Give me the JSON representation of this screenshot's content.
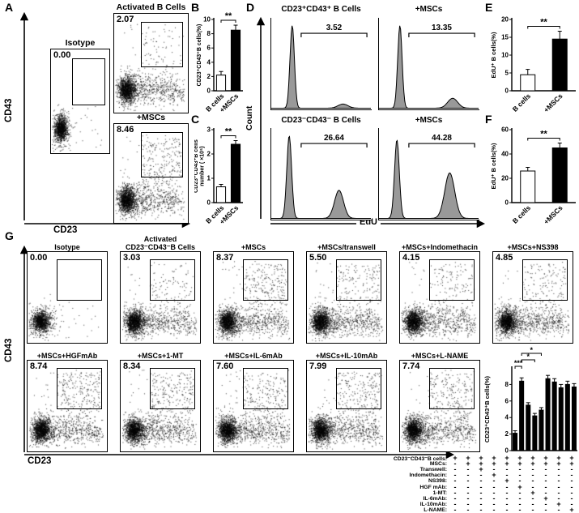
{
  "figure": {
    "bg": "#ffffff"
  },
  "axes": {
    "cd43": "CD43",
    "cd23": "CD23",
    "count": "Count",
    "edu": "EdU"
  },
  "panelA": {
    "label": "A",
    "plots": [
      {
        "name": "isotype",
        "title": [
          "Isotype"
        ],
        "value": "0.00",
        "pct": 0
      },
      {
        "name": "activated-b-cells",
        "title": [
          "Activated B Cells"
        ],
        "value": "2.07",
        "pct": 2.07
      },
      {
        "name": "plus-mscs",
        "title": [
          "+MSCs"
        ],
        "value": "8.46",
        "pct": 8.46
      }
    ]
  },
  "panelB": {
    "label": "B"
  },
  "panelC": {
    "label": "C"
  },
  "panelD": {
    "label": "D"
  },
  "panelE": {
    "label": "E"
  },
  "panelF": {
    "label": "F"
  },
  "panelG": {
    "label": "G",
    "row1": [
      {
        "name": "isotype",
        "title": [
          "Isotype"
        ],
        "value": "0.00",
        "pct": 0
      },
      {
        "name": "activated-cd23neg-cd43neg-b-cells",
        "title": [
          "Activated",
          "CD23⁻CD43⁻B Cells"
        ],
        "value": "3.03",
        "pct": 3.03
      },
      {
        "name": "plus-mscs",
        "title": [
          "+MSCs"
        ],
        "value": "8.37",
        "pct": 8.37
      },
      {
        "name": "plus-mscs-transwell",
        "title": [
          "+MSCs/transwell"
        ],
        "value": "5.50",
        "pct": 5.5
      },
      {
        "name": "plus-mscs-indomethacin",
        "title": [
          "+MSCs+Indomethacin"
        ],
        "value": "4.15",
        "pct": 4.15
      },
      {
        "name": "plus-mscs-ns398",
        "title": [
          "+MSCs+NS398"
        ],
        "value": "4.85",
        "pct": 4.85
      }
    ],
    "row2": [
      {
        "name": "plus-mscs-hgfmab",
        "title": [
          "+MSCs+HGFmAb"
        ],
        "value": "8.74",
        "pct": 8.74
      },
      {
        "name": "plus-mscs-1-mt",
        "title": [
          "+MSCs+1-MT"
        ],
        "value": "8.34",
        "pct": 8.34
      },
      {
        "name": "plus-mscs-il6mab",
        "title": [
          "+MSCs+IL-6mAb"
        ],
        "value": "7.60",
        "pct": 7.6
      },
      {
        "name": "plus-mscs-il10mab",
        "title": [
          "+MSCs+IL-10mAb"
        ],
        "value": "7.99",
        "pct": 7.99
      },
      {
        "name": "plus-mscs-lname",
        "title": [
          "+MSCs+L-NAME"
        ],
        "value": "7.74",
        "pct": 7.74
      }
    ],
    "table": {
      "rows": [
        {
          "label": "CD23⁻CD43⁻B cells:",
          "cells": [
            "+",
            "+",
            "+",
            "+",
            "+",
            "+",
            "+",
            "+",
            "+",
            "+"
          ]
        },
        {
          "label": "MSCs:",
          "cells": [
            "-",
            "+",
            "+",
            "+",
            "+",
            "+",
            "+",
            "+",
            "+",
            "+"
          ]
        },
        {
          "label": "Transwell:",
          "cells": [
            "-",
            "-",
            "+",
            "-",
            "-",
            "-",
            "-",
            "-",
            "-",
            "-"
          ]
        },
        {
          "label": "Indomethacin:",
          "cells": [
            "-",
            "-",
            "-",
            "+",
            "-",
            "-",
            "-",
            "-",
            "-",
            "-"
          ]
        },
        {
          "label": "NS398:",
          "cells": [
            "-",
            "-",
            "-",
            "-",
            "+",
            "-",
            "-",
            "-",
            "-",
            "-"
          ]
        },
        {
          "label": "HGF mAb:",
          "cells": [
            "-",
            "-",
            "-",
            "-",
            "-",
            "+",
            "-",
            "-",
            "-",
            "-"
          ]
        },
        {
          "label": "1-MT:",
          "cells": [
            "-",
            "-",
            "-",
            "-",
            "-",
            "-",
            "+",
            "-",
            "-",
            "-"
          ]
        },
        {
          "label": "IL-6mAb:",
          "cells": [
            "-",
            "-",
            "-",
            "-",
            "-",
            "-",
            "-",
            "+",
            "-",
            "-"
          ]
        },
        {
          "label": "IL-10mAb:",
          "cells": [
            "-",
            "-",
            "-",
            "-",
            "-",
            "-",
            "-",
            "-",
            "+",
            "-"
          ]
        },
        {
          "label": "L-NAME:",
          "cells": [
            "-",
            "-",
            "-",
            "-",
            "-",
            "-",
            "-",
            "-",
            "-",
            "+"
          ]
        }
      ]
    }
  },
  "chart_data": [
    {
      "id": "B",
      "type": "bar",
      "ylabel_lines": [
        "CD23⁺CD43⁺B cells(%)"
      ],
      "categories": [
        "B cells",
        "+MSCs"
      ],
      "values": [
        2.2,
        8.5
      ],
      "errors": [
        0.5,
        0.7
      ],
      "ylim": [
        0,
        10
      ],
      "yticks": [
        0,
        2,
        4,
        6,
        8,
        10
      ],
      "sig": "**",
      "bar_colors": [
        "#ffffff",
        "#000000"
      ]
    },
    {
      "id": "C",
      "type": "bar",
      "ylabel_lines": [
        "CD23⁺CD43⁺B cells",
        "number ( ×10⁵)"
      ],
      "categories": [
        "B cells",
        "+MSCs"
      ],
      "values": [
        0.65,
        2.4
      ],
      "errors": [
        0.1,
        0.15
      ],
      "ylim": [
        0,
        3
      ],
      "yticks": [
        0,
        1,
        2,
        3
      ],
      "sig": "**",
      "bar_colors": [
        "#ffffff",
        "#000000"
      ]
    },
    {
      "id": "E",
      "type": "bar",
      "ylabel_lines": [
        "EdU⁺ B cells(%)"
      ],
      "categories": [
        "B cells",
        "+MSCs"
      ],
      "values": [
        4.5,
        14.5
      ],
      "errors": [
        1.5,
        2.2
      ],
      "ylim": [
        0,
        20
      ],
      "yticks": [
        0,
        5,
        10,
        15,
        20
      ],
      "sig": "**",
      "bar_colors": [
        "#ffffff",
        "#000000"
      ]
    },
    {
      "id": "F",
      "type": "bar",
      "ylabel_lines": [
        "EdU⁺ B cells(%)"
      ],
      "categories": [
        "B cells",
        "+MSCs"
      ],
      "values": [
        26,
        45
      ],
      "errors": [
        3,
        4
      ],
      "ylim": [
        0,
        60
      ],
      "yticks": [
        0,
        20,
        40,
        60
      ],
      "sig": "**",
      "bar_colors": [
        "#ffffff",
        "#000000"
      ]
    },
    {
      "id": "G",
      "type": "bar",
      "ylabel_lines": [
        "CD23⁺CD43⁺B cells(%)"
      ],
      "categories": [
        "CD23⁻CD43⁻B cells",
        "+MSCs",
        "+MSCs/transwell",
        "+MSCs+Indomethacin",
        "+MSCs+NS398",
        "+MSCs+HGF mAb",
        "+MSCs+1-MT",
        "+MSCs+IL-6mAb",
        "+MSCs+IL-10mAb",
        "+MSCs+L-NAME"
      ],
      "values": [
        2.1,
        8.4,
        5.5,
        4.2,
        4.9,
        8.7,
        8.3,
        7.6,
        8.0,
        7.7
      ],
      "errors": [
        0.3,
        0.4,
        0.3,
        0.3,
        0.3,
        0.4,
        0.4,
        0.4,
        0.4,
        0.4
      ],
      "ylim": [
        0,
        10
      ],
      "yticks": [
        0,
        2,
        4,
        6,
        8
      ],
      "sig_brackets": [
        {
          "from": 0,
          "to": 1,
          "label": "***"
        },
        {
          "from": 1,
          "to": 3,
          "label": "*"
        },
        {
          "from": 1,
          "to": 4,
          "label": "*"
        }
      ]
    },
    {
      "id": "D1",
      "type": "histogram",
      "title": "CD23⁺CD43⁺ B Cells",
      "xlabel": "EdU",
      "ylabel": "Count",
      "gate_percent": "3.52",
      "gate": [
        0.3,
        0.96
      ],
      "peaks": [
        {
          "x": 0.21,
          "h": 1.0,
          "w": 0.022
        },
        {
          "x": 0.72,
          "h": 0.05,
          "w": 0.05
        }
      ]
    },
    {
      "id": "D2",
      "type": "histogram",
      "title": "+MSCs",
      "gate_percent": "13.35",
      "gate": [
        0.3,
        0.96
      ],
      "peaks": [
        {
          "x": 0.21,
          "h": 1.0,
          "w": 0.022
        },
        {
          "x": 0.74,
          "h": 0.12,
          "w": 0.05
        }
      ]
    },
    {
      "id": "D3",
      "type": "histogram",
      "title": "CD23⁻CD43⁻ B Cells",
      "gate_percent": "26.64",
      "gate": [
        0.3,
        0.96
      ],
      "peaks": [
        {
          "x": 0.18,
          "h": 1.0,
          "w": 0.024
        },
        {
          "x": 0.68,
          "h": 0.34,
          "w": 0.045
        }
      ]
    },
    {
      "id": "D4",
      "type": "histogram",
      "title": "+MSCs",
      "gate_percent": "44.28",
      "gate": [
        0.3,
        0.96
      ],
      "peaks": [
        {
          "x": 0.18,
          "h": 0.95,
          "w": 0.024
        },
        {
          "x": 0.71,
          "h": 0.55,
          "w": 0.05
        }
      ]
    }
  ]
}
